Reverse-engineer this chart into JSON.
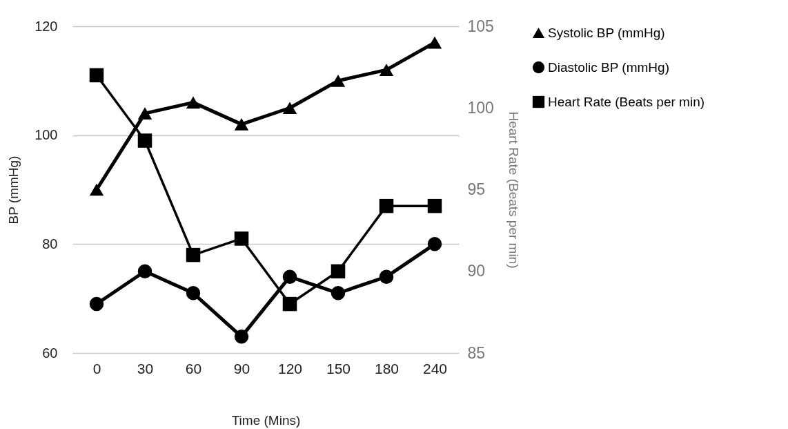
{
  "chart_data": {
    "type": "line",
    "xlabel": "Time (Mins)",
    "ylabel": "BP (mmHg)",
    "y2label": "Heart Rate (Beats per min)",
    "categories": [
      "0",
      "30",
      "60",
      "90",
      "120",
      "150",
      "180",
      "240"
    ],
    "series": [
      {
        "name": "Systolic BP (mmHg)",
        "color": "#000000",
        "marker": "triangle",
        "values": [
          90,
          104,
          106,
          102,
          105,
          110,
          112,
          117
        ]
      },
      {
        "name": "Diastolic BP (mmHg)",
        "color": "#000000",
        "marker": "circle",
        "values": [
          69,
          75,
          71,
          63,
          74,
          71,
          74,
          80
        ]
      },
      {
        "name": "Heart Rate (Beats per min)",
        "color": "#000000",
        "marker": "square",
        "axis": "y2",
        "values": [
          102,
          98,
          91,
          92,
          88,
          90,
          94,
          94
        ]
      }
    ],
    "ylim": [
      60,
      120
    ],
    "yticks": [
      60,
      80,
      100,
      120
    ],
    "y2lim": [
      85,
      105
    ],
    "y2ticks": [
      85,
      90,
      95,
      100,
      105
    ],
    "grid": "y",
    "legend": "top right"
  }
}
